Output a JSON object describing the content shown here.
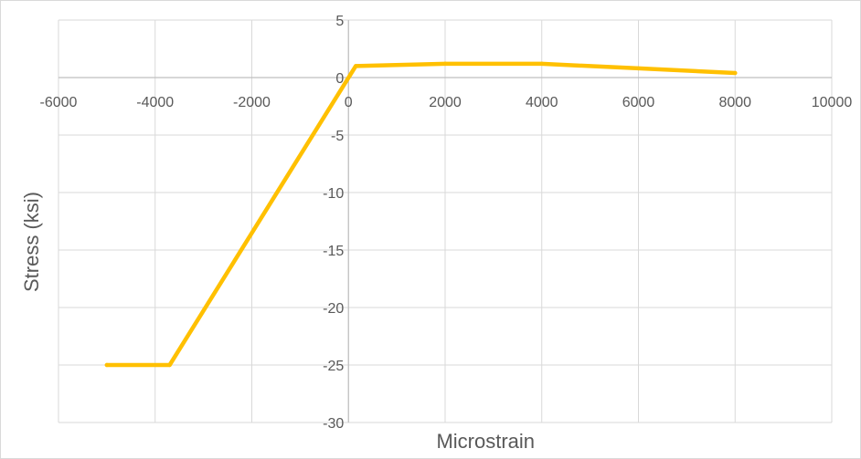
{
  "chart_data": {
    "type": "line",
    "title": "",
    "xlabel": "Microstrain",
    "ylabel": "Stress (ksi)",
    "xlim": [
      -6000,
      10000
    ],
    "ylim": [
      -30,
      5
    ],
    "x_ticks": [
      -6000,
      -4000,
      -2000,
      0,
      2000,
      4000,
      6000,
      8000,
      10000
    ],
    "y_ticks": [
      5,
      0,
      -5,
      -10,
      -15,
      -20,
      -25,
      -30
    ],
    "grid": true,
    "legend": "none",
    "colors": {
      "series": "#ffc000",
      "grid": "#d9d9d9",
      "axis": "#bfbfbf",
      "text": "#595959"
    },
    "series": [
      {
        "x": [
          -5000,
          -3700,
          150,
          2000,
          4000,
          6000,
          8000
        ],
        "y": [
          -25,
          -25,
          1.0,
          1.2,
          1.2,
          0.8,
          0.4
        ]
      }
    ]
  }
}
